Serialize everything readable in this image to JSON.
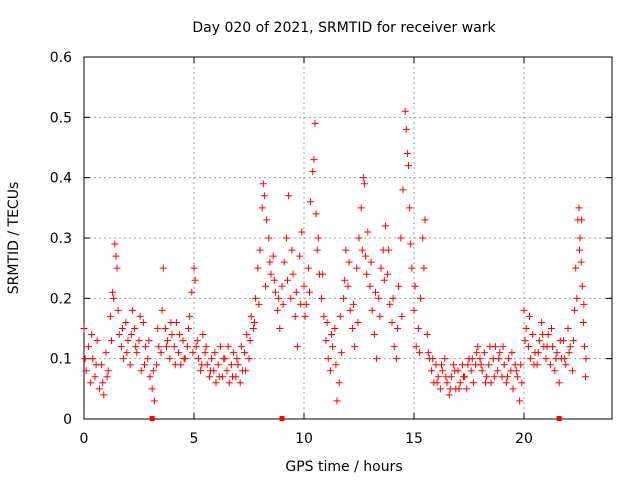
{
  "chart_data": {
    "type": "scatter",
    "title": "Day 020 of 2021, SRMTID for receiver wark",
    "xlabel": "GPS time / hours",
    "ylabel": "SRMTID / TECUs",
    "xlim": [
      0,
      24
    ],
    "ylim": [
      0,
      0.6
    ],
    "x_ticks": [
      0,
      5,
      10,
      15,
      20
    ],
    "x_tick_labels": [
      "0",
      "5",
      "10",
      "15",
      "20"
    ],
    "y_ticks": [
      0,
      0.1,
      0.2,
      0.3,
      0.4,
      0.5,
      0.6
    ],
    "y_tick_labels": [
      "0",
      "0.1",
      "0.2",
      "0.3",
      "0.4",
      "0.5",
      "0.6"
    ],
    "grid": true,
    "marker": "plus",
    "series_color": "#ff0000",
    "axis_markers_x": [
      3.1,
      9.0,
      21.6
    ],
    "points": [
      [
        0.0,
        0.15
      ],
      [
        0.1,
        0.08
      ],
      [
        0.2,
        0.12
      ],
      [
        0.3,
        0.06
      ],
      [
        0.4,
        0.1
      ],
      [
        0.5,
        0.07
      ],
      [
        0.6,
        0.13
      ],
      [
        0.7,
        0.05
      ],
      [
        0.8,
        0.09
      ],
      [
        0.9,
        0.04
      ],
      [
        1.0,
        0.11
      ],
      [
        1.1,
        0.08
      ],
      [
        1.2,
        0.17
      ],
      [
        1.3,
        0.21
      ],
      [
        1.4,
        0.29
      ],
      [
        1.45,
        0.27
      ],
      [
        1.5,
        0.25
      ],
      [
        1.6,
        0.14
      ],
      [
        1.7,
        0.12
      ],
      [
        1.8,
        0.1
      ],
      [
        1.9,
        0.16
      ],
      [
        2.0,
        0.13
      ],
      [
        2.1,
        0.09
      ],
      [
        2.2,
        0.18
      ],
      [
        2.3,
        0.15
      ],
      [
        2.4,
        0.11
      ],
      [
        2.5,
        0.13
      ],
      [
        2.6,
        0.08
      ],
      [
        2.7,
        0.16
      ],
      [
        2.8,
        0.12
      ],
      [
        2.9,
        0.1
      ],
      [
        3.0,
        0.07
      ],
      [
        3.1,
        0.05
      ],
      [
        3.2,
        0.03
      ],
      [
        3.3,
        0.09
      ],
      [
        3.4,
        0.12
      ],
      [
        3.5,
        0.11
      ],
      [
        3.6,
        0.25
      ],
      [
        3.7,
        0.15
      ],
      [
        3.8,
        0.13
      ],
      [
        3.9,
        0.1
      ],
      [
        4.0,
        0.14
      ],
      [
        4.1,
        0.12
      ],
      [
        4.2,
        0.16
      ],
      [
        4.3,
        0.11
      ],
      [
        4.4,
        0.09
      ],
      [
        4.5,
        0.13
      ],
      [
        4.6,
        0.1
      ],
      [
        4.7,
        0.12
      ],
      [
        4.8,
        0.17
      ],
      [
        4.9,
        0.21
      ],
      [
        5.0,
        0.25
      ],
      [
        5.05,
        0.23
      ],
      [
        5.1,
        0.12
      ],
      [
        5.2,
        0.1
      ],
      [
        5.3,
        0.08
      ],
      [
        5.4,
        0.14
      ],
      [
        5.5,
        0.11
      ],
      [
        5.6,
        0.09
      ],
      [
        5.7,
        0.07
      ],
      [
        5.8,
        0.1
      ],
      [
        5.9,
        0.08
      ],
      [
        6.0,
        0.06
      ],
      [
        6.1,
        0.09
      ],
      [
        6.2,
        0.12
      ],
      [
        6.3,
        0.07
      ],
      [
        6.4,
        0.1
      ],
      [
        6.5,
        0.08
      ],
      [
        6.6,
        0.06
      ],
      [
        6.7,
        0.09
      ],
      [
        6.8,
        0.11
      ],
      [
        6.9,
        0.07
      ],
      [
        7.0,
        0.09
      ],
      [
        7.1,
        0.06
      ],
      [
        7.2,
        0.08
      ],
      [
        7.3,
        0.11
      ],
      [
        7.4,
        0.14
      ],
      [
        7.5,
        0.1
      ],
      [
        7.6,
        0.17
      ],
      [
        7.7,
        0.15
      ],
      [
        7.8,
        0.2
      ],
      [
        7.9,
        0.25
      ],
      [
        8.0,
        0.28
      ],
      [
        8.1,
        0.35
      ],
      [
        8.15,
        0.39
      ],
      [
        8.2,
        0.37
      ],
      [
        8.3,
        0.33
      ],
      [
        8.4,
        0.3
      ],
      [
        8.5,
        0.24
      ],
      [
        8.6,
        0.27
      ],
      [
        8.7,
        0.21
      ],
      [
        8.8,
        0.18
      ],
      [
        8.9,
        0.15
      ],
      [
        9.0,
        0.22
      ],
      [
        9.1,
        0.26
      ],
      [
        9.2,
        0.3
      ],
      [
        9.3,
        0.37
      ],
      [
        9.4,
        0.2
      ],
      [
        9.5,
        0.24
      ],
      [
        9.6,
        0.17
      ],
      [
        9.7,
        0.12
      ],
      [
        9.8,
        0.27
      ],
      [
        9.9,
        0.31
      ],
      [
        10.0,
        0.22
      ],
      [
        10.1,
        0.19
      ],
      [
        10.2,
        0.25
      ],
      [
        10.3,
        0.36
      ],
      [
        10.4,
        0.41
      ],
      [
        10.45,
        0.43
      ],
      [
        10.5,
        0.49
      ],
      [
        10.6,
        0.28
      ],
      [
        10.7,
        0.24
      ],
      [
        10.8,
        0.2
      ],
      [
        10.9,
        0.17
      ],
      [
        11.0,
        0.13
      ],
      [
        11.1,
        0.1
      ],
      [
        11.2,
        0.08
      ],
      [
        11.3,
        0.12
      ],
      [
        11.4,
        0.15
      ],
      [
        11.5,
        0.03
      ],
      [
        11.6,
        0.06
      ],
      [
        11.7,
        0.11
      ],
      [
        11.8,
        0.2
      ],
      [
        11.9,
        0.28
      ],
      [
        12.0,
        0.22
      ],
      [
        12.1,
        0.18
      ],
      [
        12.2,
        0.15
      ],
      [
        12.3,
        0.12
      ],
      [
        12.4,
        0.25
      ],
      [
        12.5,
        0.3
      ],
      [
        12.6,
        0.35
      ],
      [
        12.7,
        0.4
      ],
      [
        12.75,
        0.39
      ],
      [
        12.8,
        0.27
      ],
      [
        12.9,
        0.31
      ],
      [
        13.0,
        0.22
      ],
      [
        13.1,
        0.18
      ],
      [
        13.2,
        0.14
      ],
      [
        13.3,
        0.1
      ],
      [
        13.4,
        0.2
      ],
      [
        13.5,
        0.25
      ],
      [
        13.6,
        0.28
      ],
      [
        13.7,
        0.32
      ],
      [
        13.8,
        0.24
      ],
      [
        13.9,
        0.19
      ],
      [
        14.0,
        0.16
      ],
      [
        14.1,
        0.12
      ],
      [
        14.2,
        0.1
      ],
      [
        14.3,
        0.22
      ],
      [
        14.4,
        0.3
      ],
      [
        14.5,
        0.38
      ],
      [
        14.6,
        0.51
      ],
      [
        14.65,
        0.48
      ],
      [
        14.7,
        0.44
      ],
      [
        14.75,
        0.42
      ],
      [
        14.8,
        0.35
      ],
      [
        14.9,
        0.25
      ],
      [
        15.0,
        0.18
      ],
      [
        15.1,
        0.12
      ],
      [
        15.2,
        0.15
      ],
      [
        15.3,
        0.2
      ],
      [
        15.4,
        0.3
      ],
      [
        15.5,
        0.33
      ],
      [
        15.6,
        0.14
      ],
      [
        15.7,
        0.1
      ],
      [
        15.8,
        0.08
      ],
      [
        15.9,
        0.06
      ],
      [
        16.0,
        0.09
      ],
      [
        16.1,
        0.07
      ],
      [
        16.2,
        0.05
      ],
      [
        16.3,
        0.08
      ],
      [
        16.4,
        0.1
      ],
      [
        16.5,
        0.06
      ],
      [
        16.6,
        0.04
      ],
      [
        16.7,
        0.07
      ],
      [
        16.8,
        0.09
      ],
      [
        16.9,
        0.05
      ],
      [
        17.0,
        0.08
      ],
      [
        17.1,
        0.06
      ],
      [
        17.2,
        0.09
      ],
      [
        17.3,
        0.07
      ],
      [
        17.4,
        0.05
      ],
      [
        17.5,
        0.1
      ],
      [
        17.6,
        0.08
      ],
      [
        17.7,
        0.06
      ],
      [
        17.8,
        0.09
      ],
      [
        17.9,
        0.12
      ],
      [
        18.0,
        0.1
      ],
      [
        18.1,
        0.08
      ],
      [
        18.2,
        0.11
      ],
      [
        18.3,
        0.07
      ],
      [
        18.4,
        0.09
      ],
      [
        18.5,
        0.06
      ],
      [
        18.6,
        0.1
      ],
      [
        18.7,
        0.12
      ],
      [
        18.8,
        0.08
      ],
      [
        18.9,
        0.11
      ],
      [
        19.0,
        0.07
      ],
      [
        19.1,
        0.09
      ],
      [
        19.2,
        0.06
      ],
      [
        19.3,
        0.1
      ],
      [
        19.4,
        0.08
      ],
      [
        19.5,
        0.05
      ],
      [
        19.6,
        0.09
      ],
      [
        19.7,
        0.07
      ],
      [
        19.8,
        0.03
      ],
      [
        19.9,
        0.06
      ],
      [
        20.0,
        0.18
      ],
      [
        20.1,
        0.15
      ],
      [
        20.2,
        0.12
      ],
      [
        20.3,
        0.1
      ],
      [
        20.4,
        0.14
      ],
      [
        20.5,
        0.11
      ],
      [
        20.6,
        0.09
      ],
      [
        20.7,
        0.13
      ],
      [
        20.8,
        0.16
      ],
      [
        20.9,
        0.12
      ],
      [
        21.0,
        0.1
      ],
      [
        21.1,
        0.14
      ],
      [
        21.2,
        0.09
      ],
      [
        21.3,
        0.12
      ],
      [
        21.4,
        0.08
      ],
      [
        21.5,
        0.11
      ],
      [
        21.6,
        0.06
      ],
      [
        21.7,
        0.1
      ],
      [
        21.8,
        0.13
      ],
      [
        21.9,
        0.09
      ],
      [
        22.0,
        0.15
      ],
      [
        22.1,
        0.12
      ],
      [
        22.2,
        0.08
      ],
      [
        22.3,
        0.18
      ],
      [
        22.4,
        0.2
      ],
      [
        22.45,
        0.33
      ],
      [
        22.5,
        0.35
      ],
      [
        22.55,
        0.3
      ],
      [
        22.6,
        0.26
      ],
      [
        22.65,
        0.22
      ],
      [
        22.7,
        0.16
      ],
      [
        22.75,
        0.12
      ],
      [
        22.8,
        0.07
      ],
      [
        0.05,
        0.1
      ],
      [
        0.35,
        0.14
      ],
      [
        0.55,
        0.09
      ],
      [
        0.85,
        0.06
      ],
      [
        1.05,
        0.07
      ],
      [
        1.25,
        0.13
      ],
      [
        1.35,
        0.2
      ],
      [
        1.55,
        0.18
      ],
      [
        1.75,
        0.15
      ],
      [
        1.95,
        0.11
      ],
      [
        2.15,
        0.14
      ],
      [
        2.35,
        0.12
      ],
      [
        2.55,
        0.17
      ],
      [
        2.75,
        0.09
      ],
      [
        2.95,
        0.13
      ],
      [
        3.15,
        0.08
      ],
      [
        3.35,
        0.15
      ],
      [
        3.55,
        0.18
      ],
      [
        3.75,
        0.12
      ],
      [
        3.95,
        0.16
      ],
      [
        4.15,
        0.09
      ],
      [
        4.35,
        0.14
      ],
      [
        4.55,
        0.1
      ],
      [
        4.75,
        0.15
      ],
      [
        4.95,
        0.11
      ],
      [
        5.15,
        0.13
      ],
      [
        5.35,
        0.09
      ],
      [
        5.55,
        0.12
      ],
      [
        5.75,
        0.08
      ],
      [
        5.95,
        0.11
      ],
      [
        6.15,
        0.07
      ],
      [
        6.35,
        0.1
      ],
      [
        6.55,
        0.12
      ],
      [
        6.75,
        0.07
      ],
      [
        6.95,
        0.1
      ],
      [
        7.15,
        0.12
      ],
      [
        7.35,
        0.08
      ],
      [
        7.55,
        0.13
      ],
      [
        7.75,
        0.16
      ],
      [
        7.95,
        0.19
      ],
      [
        8.25,
        0.22
      ],
      [
        8.45,
        0.26
      ],
      [
        8.65,
        0.23
      ],
      [
        8.85,
        0.2
      ],
      [
        9.05,
        0.19
      ],
      [
        9.25,
        0.23
      ],
      [
        9.45,
        0.28
      ],
      [
        9.65,
        0.21
      ],
      [
        9.85,
        0.19
      ],
      [
        10.05,
        0.17
      ],
      [
        10.25,
        0.21
      ],
      [
        10.55,
        0.34
      ],
      [
        10.65,
        0.3
      ],
      [
        10.85,
        0.24
      ],
      [
        11.05,
        0.16
      ],
      [
        11.25,
        0.14
      ],
      [
        11.45,
        0.09
      ],
      [
        11.65,
        0.17
      ],
      [
        11.85,
        0.23
      ],
      [
        12.05,
        0.26
      ],
      [
        12.25,
        0.19
      ],
      [
        12.45,
        0.16
      ],
      [
        12.65,
        0.28
      ],
      [
        12.85,
        0.24
      ],
      [
        13.05,
        0.26
      ],
      [
        13.25,
        0.21
      ],
      [
        13.45,
        0.17
      ],
      [
        13.65,
        0.23
      ],
      [
        13.85,
        0.28
      ],
      [
        14.05,
        0.2
      ],
      [
        14.25,
        0.15
      ],
      [
        14.45,
        0.17
      ],
      [
        14.85,
        0.29
      ],
      [
        15.05,
        0.22
      ],
      [
        15.25,
        0.11
      ],
      [
        15.45,
        0.25
      ],
      [
        15.65,
        0.11
      ],
      [
        15.85,
        0.1
      ],
      [
        16.05,
        0.06
      ],
      [
        16.25,
        0.09
      ],
      [
        16.45,
        0.07
      ],
      [
        16.65,
        0.05
      ],
      [
        16.85,
        0.08
      ],
      [
        17.05,
        0.05
      ],
      [
        17.25,
        0.07
      ],
      [
        17.45,
        0.09
      ],
      [
        17.65,
        0.1
      ],
      [
        17.85,
        0.11
      ],
      [
        18.05,
        0.09
      ],
      [
        18.25,
        0.06
      ],
      [
        18.45,
        0.12
      ],
      [
        18.65,
        0.07
      ],
      [
        18.85,
        0.1
      ],
      [
        19.05,
        0.12
      ],
      [
        19.25,
        0.07
      ],
      [
        19.45,
        0.11
      ],
      [
        19.65,
        0.08
      ],
      [
        19.85,
        0.09
      ],
      [
        20.05,
        0.13
      ],
      [
        20.25,
        0.17
      ],
      [
        20.45,
        0.09
      ],
      [
        20.65,
        0.11
      ],
      [
        20.85,
        0.14
      ],
      [
        21.05,
        0.12
      ],
      [
        21.25,
        0.15
      ],
      [
        21.45,
        0.1
      ],
      [
        21.65,
        0.13
      ],
      [
        21.85,
        0.1
      ],
      [
        22.05,
        0.11
      ],
      [
        22.25,
        0.13
      ],
      [
        22.35,
        0.25
      ],
      [
        22.52,
        0.28
      ],
      [
        22.62,
        0.33
      ],
      [
        22.72,
        0.19
      ],
      [
        22.82,
        0.1
      ]
    ]
  }
}
